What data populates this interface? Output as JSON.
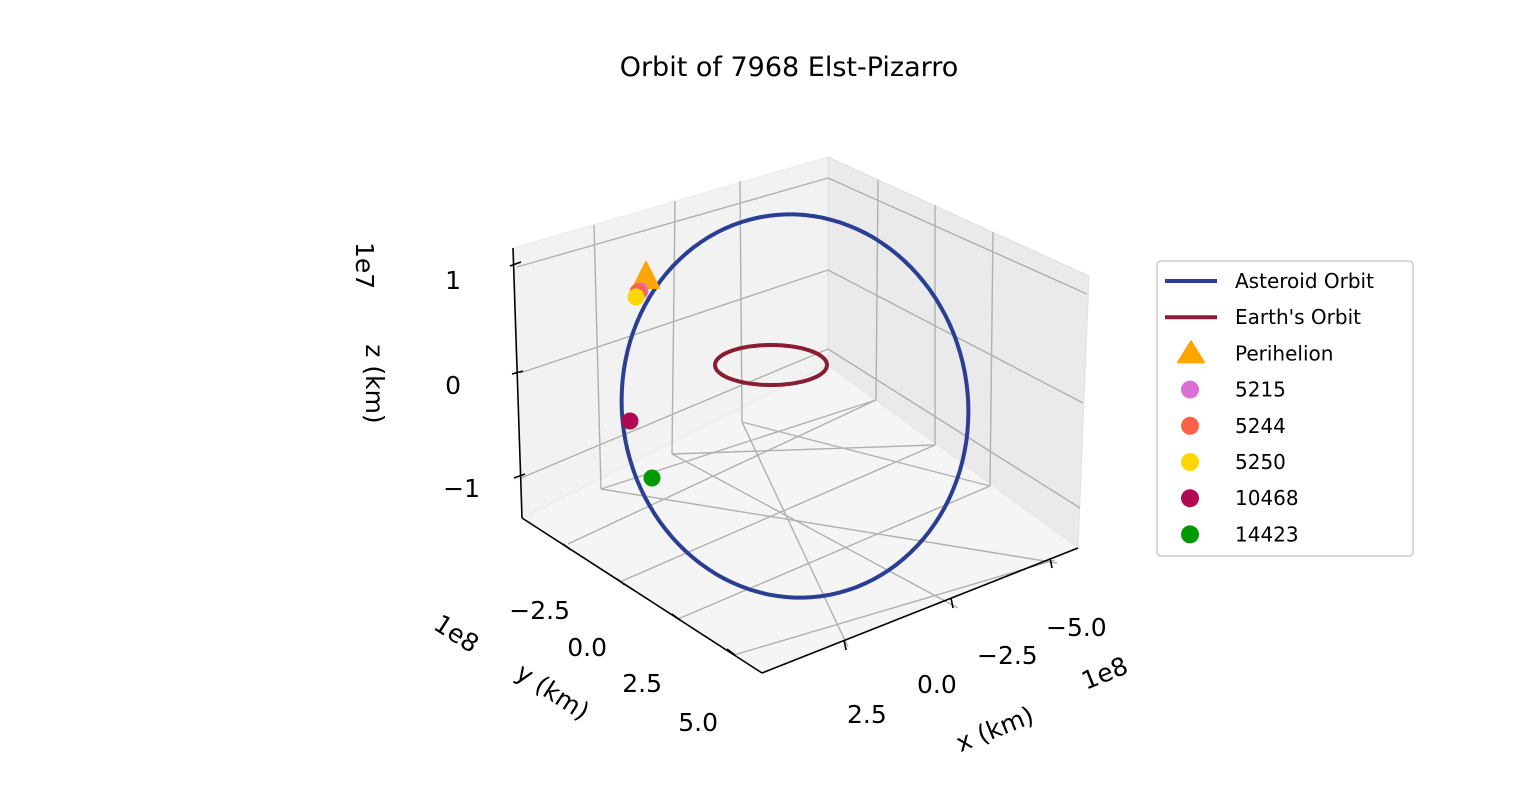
{
  "chart_data": {
    "type": "line",
    "projection": "3d",
    "title": "Orbit of 7968 Elst-Pizarro",
    "xlabel": "x (km)",
    "ylabel": "y (km)",
    "zlabel": "z (km)",
    "x_offset_text": "1e8",
    "y_offset_text": "1e8",
    "z_offset_text": "1e7",
    "x_ticks": [
      "2.5",
      "0.0",
      "−2.5",
      "−5.0"
    ],
    "y_ticks": [
      "−2.5",
      "0.0",
      "2.5",
      "5.0"
    ],
    "z_ticks": [
      "−1",
      "0",
      "1"
    ],
    "xlim": [
      -600000000.0,
      450000000.0
    ],
    "ylim": [
      -400000000.0,
      600000000.0
    ],
    "zlim": [
      -15000000.0,
      15000000.0
    ],
    "grid": true,
    "legend_position": "right",
    "series": [
      {
        "name": "Asteroid Orbit",
        "kind": "line",
        "color": "#2a3f93"
      },
      {
        "name": "Earth's Orbit",
        "kind": "line",
        "color": "#8a1c33"
      },
      {
        "name": "Perihelion",
        "kind": "triangle-marker",
        "color": "#ffa500"
      },
      {
        "name": "5215",
        "kind": "point",
        "color": "#da70d6"
      },
      {
        "name": "5244",
        "kind": "point",
        "color": "#ff6347"
      },
      {
        "name": "5250",
        "kind": "point",
        "color": "#ffd700"
      },
      {
        "name": "10468",
        "kind": "point",
        "color": "#b00852"
      },
      {
        "name": "14423",
        "kind": "point",
        "color": "#009900"
      }
    ]
  }
}
